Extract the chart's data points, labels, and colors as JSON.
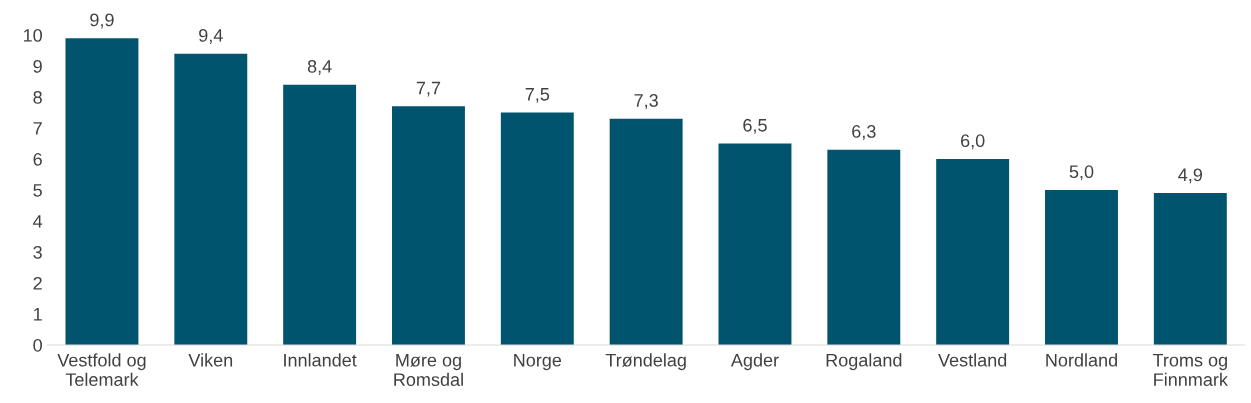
{
  "chart_data": {
    "type": "bar",
    "categories": [
      "Vestfold og\nTelemark",
      "Viken",
      "Innlandet",
      "Møre og\nRomsdal",
      "Norge",
      "Trøndelag",
      "Agder",
      "Rogaland",
      "Vestland",
      "Nordland",
      "Troms og\nFinnmark"
    ],
    "values": [
      9.9,
      9.4,
      8.4,
      7.7,
      7.5,
      7.3,
      6.5,
      6.3,
      6.0,
      5.0,
      4.9
    ],
    "value_labels": [
      "9,9",
      "9,4",
      "8,4",
      "7,7",
      "7,5",
      "7,3",
      "6,5",
      "6,3",
      "6,0",
      "5,0",
      "4,9"
    ],
    "color": "#00546e",
    "ylim": [
      0,
      10
    ],
    "yticks": [
      0,
      1,
      2,
      3,
      4,
      5,
      6,
      7,
      8,
      9,
      10
    ],
    "grid": false,
    "legend": false
  }
}
